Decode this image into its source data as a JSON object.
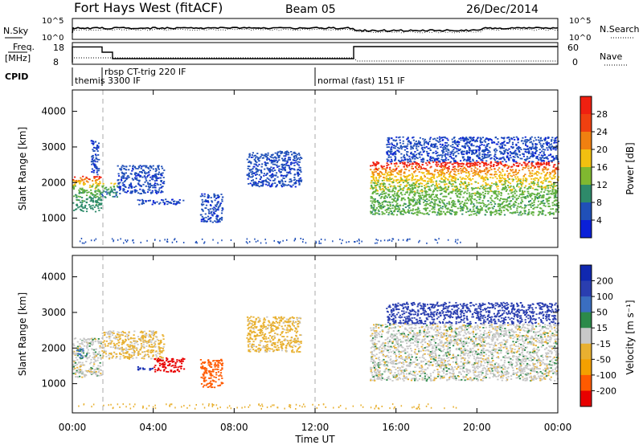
{
  "header": {
    "station": "Fort Hays West (fitACF)",
    "beam": "Beam 05",
    "date": "26/Dec/2014"
  },
  "top_panels": {
    "nsky_label": "N.Sky",
    "nsearch_label": "N.Search",
    "nsky_ticks": [
      "10^5",
      "10^0"
    ],
    "nsearch_ticks": [
      "10^5",
      "10^0"
    ],
    "freq_label": "Freq.",
    "freq_unit": "[MHz]",
    "freq_ticks": [
      "18",
      "8"
    ],
    "nave_label": "Nave",
    "nave_ticks": [
      "60",
      "0"
    ],
    "cpid_label": "CPID",
    "modes": [
      {
        "label": "themis 3300 IF",
        "start_hour": 0
      },
      {
        "label": "rbsp CT-trig 220 IF",
        "start_hour": 1.5
      },
      {
        "label": "normal (fast) 151 IF",
        "start_hour": 12
      }
    ]
  },
  "colorbars": {
    "power": {
      "label": "Power [dB]",
      "ticks": [
        "28",
        "24",
        "20",
        "16",
        "12",
        "8",
        "4"
      ]
    },
    "velocity": {
      "label": "Velocity [m s⁻¹]",
      "ticks": [
        "200",
        "100",
        "50",
        "15",
        "-15",
        "-50",
        "-100",
        "-200"
      ]
    }
  },
  "axes": {
    "ylabel": "Slant Range [km]",
    "y_ticks": [
      "1000",
      "2000",
      "3000",
      "4000"
    ],
    "x_ticks": [
      "00:00",
      "04:00",
      "08:00",
      "12:00",
      "16:00",
      "20:00",
      "00:00"
    ],
    "xlabel": "Time UT"
  },
  "chart_data": [
    {
      "type": "heatmap",
      "title": "",
      "xlabel": "Time UT",
      "ylabel": "Slant Range [km]",
      "xlim": [
        0,
        24
      ],
      "ylim": [
        180,
        4600
      ],
      "colorbar": "Power [dB]",
      "colorbar_range": [
        0,
        30
      ],
      "regions": [
        {
          "t0": 0.0,
          "t1": 1.4,
          "r_min": 1200,
          "r_max": 2200,
          "edge_power": 27,
          "core_power": 10
        },
        {
          "t0": 0.9,
          "t1": 1.3,
          "r_min": 2200,
          "r_max": 3200,
          "edge_power": 5,
          "core_power": 5
        },
        {
          "t0": 1.4,
          "t1": 2.2,
          "r_min": 1600,
          "r_max": 2000,
          "edge_power": 20,
          "core_power": 8
        },
        {
          "t0": 2.2,
          "t1": 4.5,
          "r_min": 1700,
          "r_max": 2500,
          "edge_power": 6,
          "core_power": 5
        },
        {
          "t0": 3.2,
          "t1": 5.5,
          "r_min": 1400,
          "r_max": 1550,
          "edge_power": 5,
          "core_power": 5
        },
        {
          "t0": 6.3,
          "t1": 7.4,
          "r_min": 900,
          "r_max": 1700,
          "edge_power": 5,
          "core_power": 5
        },
        {
          "t0": 8.6,
          "t1": 11.3,
          "r_min": 1900,
          "r_max": 2900,
          "edge_power": 6,
          "core_power": 5
        },
        {
          "t0": 14.7,
          "t1": 24.0,
          "r_min": 1100,
          "r_max": 2600,
          "edge_power": 28,
          "core_power": 13
        },
        {
          "t0": 15.5,
          "t1": 24.0,
          "r_min": 2600,
          "r_max": 3300,
          "edge_power": 5,
          "core_power": 5
        }
      ]
    },
    {
      "type": "heatmap",
      "title": "",
      "xlabel": "Time UT",
      "ylabel": "Slant Range [km]",
      "xlim": [
        0,
        24
      ],
      "ylim": [
        180,
        4600
      ],
      "colorbar": "Velocity [m s⁻¹]",
      "colorbar_range": [
        -250,
        250
      ],
      "regions": [
        {
          "t0": 0.0,
          "t1": 1.4,
          "r_min": 1200,
          "r_max": 2300,
          "velocity": 0
        },
        {
          "t0": 0.2,
          "t1": 0.7,
          "r_min": 1700,
          "r_max": 2000,
          "velocity": 60
        },
        {
          "t0": 1.4,
          "t1": 4.5,
          "r_min": 1700,
          "r_max": 2500,
          "velocity": -20
        },
        {
          "t0": 3.2,
          "t1": 4.0,
          "r_min": 1400,
          "r_max": 1500,
          "velocity": 220
        },
        {
          "t0": 4.0,
          "t1": 5.5,
          "r_min": 1350,
          "r_max": 1750,
          "velocity": -230
        },
        {
          "t0": 6.3,
          "t1": 7.4,
          "r_min": 900,
          "r_max": 1700,
          "velocity": -180
        },
        {
          "t0": 8.6,
          "t1": 11.3,
          "r_min": 1900,
          "r_max": 2900,
          "velocity": -30
        },
        {
          "t0": 14.7,
          "t1": 24.0,
          "r_min": 1100,
          "r_max": 2700,
          "velocity": 0
        },
        {
          "t0": 15.5,
          "t1": 24.0,
          "r_min": 2700,
          "r_max": 3300,
          "velocity": 180
        }
      ]
    }
  ]
}
